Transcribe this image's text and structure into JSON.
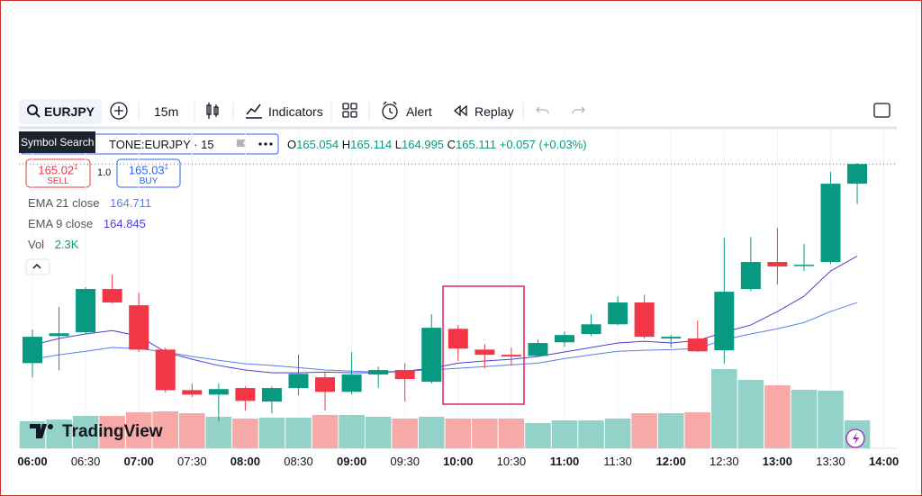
{
  "toolbar": {
    "symbol": "EURJPY",
    "interval": "15m",
    "indicators": "Indicators",
    "alert": "Alert",
    "replay": "Replay",
    "tooltip": "Symbol Search"
  },
  "legend": {
    "title": "TONE:EURJPY · 15",
    "o": "O",
    "h": "H",
    "l": "L",
    "c": "C",
    "change": "+0.057",
    "change_pct": "(+0.03%)"
  },
  "trade": {
    "sell_price": "165.02",
    "sell_sup": "1",
    "sell": "SELL",
    "qty": "1.0",
    "buy_price": "165.03",
    "buy_sup": "1",
    "buy": "BUY"
  },
  "logo": "TradingView",
  "chart_data": {
    "type": "candlestick",
    "x_labels": [
      "06:00",
      "06:30",
      "07:00",
      "07:30",
      "08:00",
      "08:30",
      "09:00",
      "09:30",
      "10:00",
      "10:30",
      "11:00",
      "11:30",
      "12:00",
      "12:30",
      "13:00",
      "13:30",
      "14:00"
    ],
    "open": [
      164.536,
      164.614,
      164.625,
      164.75,
      164.703,
      164.575,
      164.458,
      164.445,
      164.464,
      164.425,
      164.464,
      164.495,
      164.453,
      164.503,
      164.516,
      164.482,
      164.635,
      164.575,
      164.56,
      164.557,
      164.596,
      164.62,
      164.648,
      164.711,
      164.607,
      164.607,
      164.573,
      164.75,
      164.828,
      164.817,
      164.828,
      165.054
    ],
    "high": [
      164.633,
      164.698,
      164.755,
      164.791,
      164.739,
      164.581,
      164.477,
      164.477,
      164.469,
      164.469,
      164.56,
      164.51,
      164.568,
      164.526,
      164.536,
      164.677,
      164.646,
      164.591,
      164.581,
      164.604,
      164.627,
      164.677,
      164.729,
      164.734,
      164.617,
      164.659,
      164.898,
      164.9,
      164.926,
      164.88,
      165.088,
      165.114
    ],
    "low": [
      164.495,
      164.516,
      164.62,
      164.708,
      164.568,
      164.451,
      164.438,
      164.367,
      164.399,
      164.391,
      164.443,
      164.399,
      164.445,
      164.464,
      164.425,
      164.477,
      164.542,
      164.521,
      164.529,
      164.555,
      164.583,
      164.614,
      164.646,
      164.607,
      164.581,
      164.568,
      164.534,
      164.744,
      164.763,
      164.802,
      164.822,
      164.995
    ],
    "close": [
      164.612,
      164.622,
      164.75,
      164.711,
      164.575,
      164.458,
      164.445,
      164.461,
      164.427,
      164.464,
      164.505,
      164.453,
      164.503,
      164.516,
      164.49,
      164.638,
      164.578,
      164.56,
      164.555,
      164.594,
      164.617,
      164.648,
      164.711,
      164.612,
      164.612,
      164.57,
      164.742,
      164.828,
      164.815,
      164.82,
      165.054,
      165.111
    ],
    "up_color": "#089981",
    "down_color": "#f23645",
    "series": [
      {
        "name": "EMA 21 close",
        "color": "#5b7cf0",
        "values": [
          164.547,
          164.56,
          164.57,
          164.581,
          164.578,
          164.568,
          164.555,
          164.544,
          164.534,
          164.529,
          164.523,
          164.516,
          164.513,
          164.51,
          164.513,
          164.516,
          164.521,
          164.526,
          164.531,
          164.536,
          164.549,
          164.56,
          164.57,
          164.573,
          164.575,
          164.578,
          164.604,
          164.62,
          164.635,
          164.653,
          164.685,
          164.711
        ]
      },
      {
        "name": "EMA 9 close",
        "color": "#4b3fd6",
        "values": [
          164.588,
          164.607,
          164.62,
          164.63,
          164.614,
          164.568,
          164.547,
          164.529,
          164.516,
          164.508,
          164.508,
          164.51,
          164.508,
          164.508,
          164.513,
          164.521,
          164.536,
          164.542,
          164.547,
          164.555,
          164.568,
          164.581,
          164.594,
          164.599,
          164.594,
          164.601,
          164.625,
          164.646,
          164.685,
          164.729,
          164.802,
          164.845
        ]
      }
    ],
    "volume": {
      "name": "Vol",
      "up_color": "#92d2c9",
      "down_color": "#f6a9a6",
      "values": [
        2230,
        2370,
        2670,
        2670,
        2970,
        3040,
        2890,
        2600,
        2450,
        2520,
        2520,
        2750,
        2750,
        2600,
        2450,
        2600,
        2450,
        2450,
        2450,
        2080,
        2300,
        2300,
        2450,
        2890,
        2890,
        2970,
        6530,
        5640,
        5190,
        4820,
        4750,
        2300
      ],
      "last_label": "2.3K"
    },
    "ylim": [
      164.29,
      165.218
    ],
    "vlim": [
      0,
      26500
    ]
  }
}
